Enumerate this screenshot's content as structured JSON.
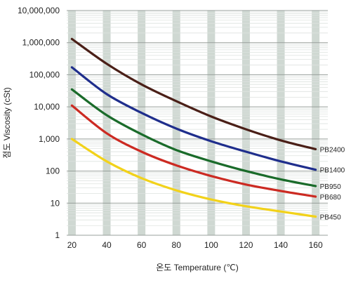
{
  "chart_data": {
    "type": "line",
    "title": "",
    "xlabel": "온도  Temperature (℃)",
    "ylabel": "점도  Viscosity (cSt)",
    "x_ticks": [
      20,
      40,
      60,
      80,
      100,
      120,
      140,
      160
    ],
    "y_ticks": [
      1,
      10,
      100,
      1000,
      10000,
      100000,
      1000000,
      10000000
    ],
    "y_tick_labels": [
      "1",
      "10",
      "100",
      "1,000",
      "10,000",
      "100,000",
      "1,000,000",
      "10,000,000"
    ],
    "xlim": [
      17,
      167
    ],
    "ylim": [
      1,
      10000000
    ],
    "y_scale": "log",
    "grid": "vertical shaded bands at x ticks; horizontal lines at y ticks",
    "legend": "labels at right end of each line",
    "series": [
      {
        "name": "PB2400",
        "color": "#4a1f17",
        "x": [
          20,
          40,
          60,
          80,
          100,
          120,
          140,
          160
        ],
        "y": [
          1300000,
          220000,
          50000,
          15000,
          5000,
          2000,
          900,
          480
        ]
      },
      {
        "name": "PB1400",
        "color": "#1f2e8c",
        "x": [
          20,
          40,
          60,
          80,
          100,
          120,
          140,
          160
        ],
        "y": [
          170000,
          25000,
          6500,
          2100,
          850,
          400,
          200,
          110
        ]
      },
      {
        "name": "PB950",
        "color": "#1a6b2a",
        "x": [
          20,
          40,
          60,
          80,
          100,
          120,
          140,
          160
        ],
        "y": [
          35000,
          5500,
          1400,
          450,
          200,
          100,
          55,
          34
        ]
      },
      {
        "name": "PB680",
        "color": "#cc2a22",
        "x": [
          20,
          40,
          60,
          80,
          100,
          120,
          140,
          160
        ],
        "y": [
          11000,
          1500,
          400,
          150,
          70,
          38,
          24,
          16
        ]
      },
      {
        "name": "PB450",
        "color": "#f2d21a",
        "x": [
          20,
          40,
          60,
          80,
          100,
          120,
          140,
          160
        ],
        "y": [
          1000,
          200,
          60,
          25,
          13,
          8,
          5.5,
          3.8
        ]
      }
    ]
  }
}
